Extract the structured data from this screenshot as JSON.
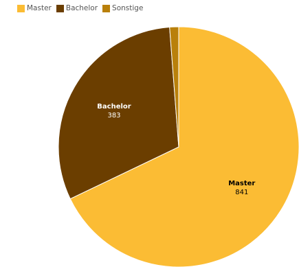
{
  "chart_data": {
    "type": "pie",
    "categories": [
      "Master",
      "Bachelor",
      "Sonstige"
    ],
    "values": [
      841,
      383,
      15
    ],
    "colors": [
      "#FBBC34",
      "#6B3E00",
      "#B9800B"
    ],
    "legend_position": "top-left",
    "data_labels": [
      {
        "name": "Master",
        "value": "841",
        "text_color": "#000000"
      },
      {
        "name": "Bachelor",
        "value": "383",
        "text_color": "#ffffff"
      }
    ]
  }
}
